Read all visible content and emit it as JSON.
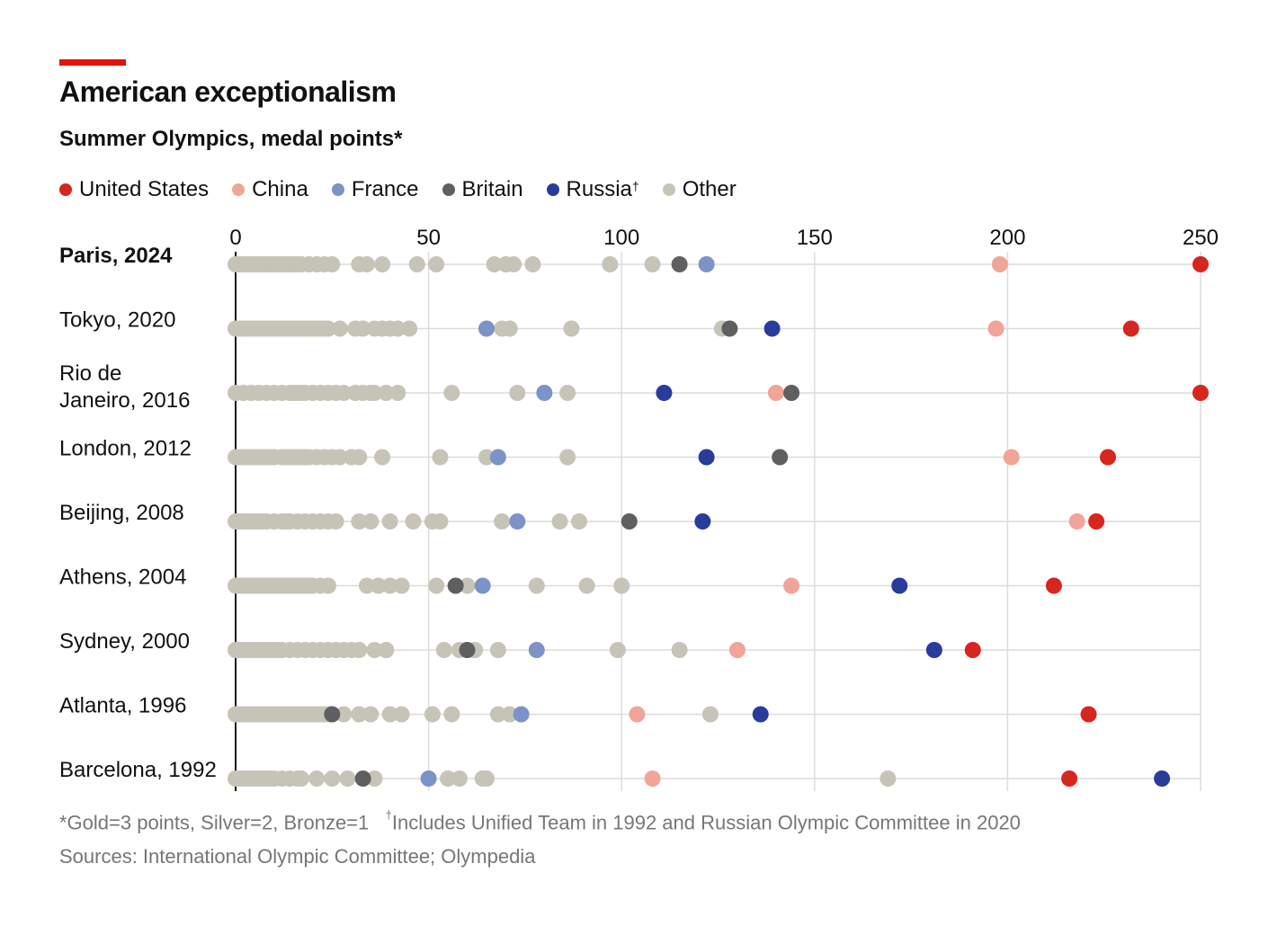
{
  "header": {
    "accent_color": "#e3120b",
    "title": "American exceptionalism",
    "subtitle": "Summer Olympics, medal points*"
  },
  "legend": [
    {
      "key": "us",
      "label": "United States",
      "color": "#d7261e"
    },
    {
      "key": "china",
      "label": "China",
      "color": "#f0a598"
    },
    {
      "key": "france",
      "label": "France",
      "color": "#7b93c7"
    },
    {
      "key": "britain",
      "label": "Britain",
      "color": "#5f5f5f"
    },
    {
      "key": "russia",
      "label": "Russia",
      "color": "#283c9b"
    },
    {
      "key": "other",
      "label": "Other",
      "color": "#c6c4b6"
    }
  ],
  "russia_mark": "†",
  "chart_data": {
    "type": "scatter",
    "title": "American exceptionalism",
    "subtitle": "Summer Olympics, medal points*",
    "xlim": [
      0,
      250
    ],
    "xticks": [
      0,
      50,
      100,
      150,
      200,
      250
    ],
    "grid": true,
    "games": [
      {
        "label": "Paris, 2024",
        "bold": true,
        "us": 250,
        "china": 198,
        "france": 122,
        "britain": 115,
        "russia": null,
        "other": [
          0,
          1,
          2,
          3,
          4,
          5,
          6,
          7,
          8,
          9,
          10,
          11,
          12,
          13,
          14,
          15,
          16,
          17,
          19,
          21,
          23,
          25,
          32,
          34,
          38,
          47,
          52,
          67,
          70,
          72,
          77,
          97,
          108
        ]
      },
      {
        "label": "Tokyo, 2020",
        "us": 232,
        "china": 197,
        "france": 65,
        "britain": 128,
        "russia": 139,
        "other": [
          0,
          1,
          2,
          3,
          4,
          5,
          6,
          7,
          8,
          9,
          10,
          11,
          12,
          13,
          14,
          15,
          16,
          17,
          18,
          19,
          20,
          21,
          22,
          23,
          24,
          27,
          31,
          33,
          36,
          38,
          40,
          42,
          45,
          69,
          71,
          87,
          126
        ]
      },
      {
        "label": "Rio de Janeiro, 2016",
        "us": 250,
        "china": 140,
        "france": 80,
        "britain": 144,
        "russia": 111,
        "other": [
          0,
          2,
          4,
          6,
          8,
          10,
          12,
          14,
          15,
          16,
          17,
          18,
          20,
          22,
          24,
          26,
          28,
          31,
          33,
          35,
          36,
          39,
          42,
          56,
          73,
          86
        ]
      },
      {
        "label": "London, 2012",
        "us": 226,
        "china": 201,
        "france": 68,
        "britain": 141,
        "russia": 122,
        "other": [
          0,
          1,
          2,
          3,
          4,
          5,
          6,
          7,
          8,
          9,
          10,
          12,
          13,
          14,
          15,
          16,
          17,
          18,
          19,
          21,
          23,
          25,
          27,
          30,
          32,
          38,
          53,
          65,
          86
        ]
      },
      {
        "label": "Beijing, 2008",
        "us": 223,
        "china": 218,
        "france": 73,
        "britain": 102,
        "russia": 121,
        "other": [
          0,
          1,
          2,
          3,
          4,
          5,
          6,
          7,
          8,
          10,
          12,
          13,
          14,
          16,
          18,
          20,
          22,
          24,
          26,
          32,
          35,
          40,
          46,
          51,
          53,
          69,
          84,
          89
        ]
      },
      {
        "label": "Athens, 2004",
        "us": 212,
        "china": 144,
        "france": 64,
        "britain": 57,
        "russia": 172,
        "other": [
          0,
          1,
          2,
          3,
          4,
          5,
          6,
          7,
          8,
          9,
          10,
          11,
          12,
          13,
          14,
          15,
          16,
          17,
          18,
          19,
          20,
          22,
          24,
          34,
          37,
          40,
          43,
          52,
          60,
          78,
          91,
          100
        ]
      },
      {
        "label": "Sydney, 2000",
        "us": 191,
        "china": 130,
        "france": 78,
        "britain": 60,
        "russia": 181,
        "other": [
          0,
          1,
          2,
          3,
          4,
          5,
          6,
          7,
          8,
          9,
          10,
          11,
          12,
          14,
          16,
          18,
          20,
          22,
          24,
          26,
          28,
          30,
          32,
          36,
          39,
          54,
          58,
          62,
          68,
          99,
          115
        ]
      },
      {
        "label": "Atlanta, 1996",
        "us": 221,
        "china": 104,
        "france": 74,
        "britain": 25,
        "russia": 136,
        "other": [
          0,
          1,
          2,
          3,
          4,
          5,
          6,
          7,
          8,
          9,
          10,
          11,
          12,
          13,
          14,
          15,
          16,
          17,
          18,
          19,
          20,
          21,
          22,
          23,
          24,
          28,
          32,
          35,
          40,
          43,
          51,
          56,
          68,
          71,
          123
        ]
      },
      {
        "label": "Barcelona, 1992",
        "us": 216,
        "china": 108,
        "france": 50,
        "britain": 33,
        "russia": 240,
        "other": [
          0,
          1,
          2,
          3,
          4,
          5,
          6,
          7,
          8,
          9,
          10,
          12,
          14,
          16,
          17,
          21,
          25,
          29,
          36,
          55,
          58,
          64,
          65,
          169
        ]
      }
    ]
  },
  "footnote": {
    "asterisk": "*Gold=3 points, Silver=2, Bronze=1",
    "dagger": "†",
    "dagger_text": "Includes Unified Team in 1992 and Russian Olympic Committee in 2020"
  },
  "source": "Sources: International Olympic Committee; Olympedia"
}
